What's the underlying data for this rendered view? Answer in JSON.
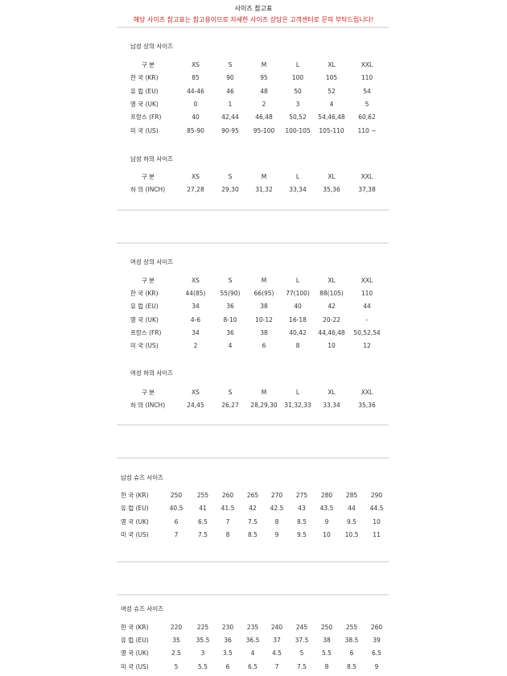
{
  "header": {
    "title": "사이즈 참고표",
    "notice": "해당 사이즈 참고표는 참고용이므로 자세한 사이즈 상담은 고객센터로 문의 부탁드립니다!"
  },
  "colors": {
    "notice": "#c8201e",
    "divider": "#e4e4e4",
    "text": "#333333"
  },
  "tables": [
    {
      "heading": "남성 상의 사이즈",
      "header": [
        "구 분",
        "XS",
        "S",
        "M",
        "L",
        "XL",
        "XXL"
      ],
      "rows": [
        [
          "한 국 (KR)",
          "85",
          "90",
          "95",
          "100",
          "105",
          "110"
        ],
        [
          "유 럽 (EU)",
          "44-46",
          "46",
          "48",
          "50",
          "52",
          "54"
        ],
        [
          "영 국 (UK)",
          "0",
          "1",
          "2",
          "3",
          "4",
          "5"
        ],
        [
          "프랑스 (FR)",
          "40",
          "42,44",
          "46,48",
          "50,52",
          "54,46,48",
          "60,62"
        ],
        [
          "미 국 (US)",
          "85-90",
          "90-95",
          "95-100",
          "100-105",
          "105-110",
          "110 ~"
        ]
      ]
    },
    {
      "heading": "남성 하의 사이즈",
      "header": [
        "구 분",
        "XS",
        "S",
        "M",
        "L",
        "XL",
        "XXL"
      ],
      "rows": [
        [
          "하 의 (INCH)",
          "27,28",
          "29,30",
          "31,32",
          "33,34",
          "35,36",
          "37,38"
        ]
      ]
    },
    {
      "heading": "여성 상의 사이즈",
      "header": [
        "구 분",
        "XS",
        "S",
        "M",
        "L",
        "XL",
        "XXL"
      ],
      "rows": [
        [
          "한 국 (KR)",
          "44(85)",
          "55(90)",
          "66(95)",
          "77(100)",
          "88(105)",
          "110"
        ],
        [
          "유 럽 (EU)",
          "34",
          "36",
          "38",
          "40",
          "42",
          "44"
        ],
        [
          "영 국 (UK)",
          "4-6",
          "8-10",
          "10-12",
          "16-18",
          "20-22",
          "-"
        ],
        [
          "프랑스 (FR)",
          "34",
          "36",
          "38",
          "40,42",
          "44,46,48",
          "50,52,54"
        ],
        [
          "미 국 (US)",
          "2",
          "4",
          "6",
          "8",
          "10",
          "12"
        ]
      ]
    },
    {
      "heading": "여성 하의 사이즈",
      "header": [
        "구 분",
        "XS",
        "S",
        "M",
        "L",
        "XL",
        "XXL"
      ],
      "rows": [
        [
          "하 의 (INCH)",
          "24,45",
          "26,27",
          "28,29,30",
          "31,32,33",
          "33,34",
          "35,36"
        ]
      ]
    },
    {
      "heading": "남성 슈즈 사이즈",
      "rows": [
        [
          "한 국 (KR)",
          "250",
          "255",
          "260",
          "265",
          "270",
          "275",
          "280",
          "285",
          "290"
        ],
        [
          "유 럽 (EU)",
          "40.5",
          "41",
          "41.5",
          "42",
          "42.5",
          "43",
          "43.5",
          "44",
          "44.5"
        ],
        [
          "영 국 (UK)",
          "6",
          "6.5",
          "7",
          "7.5",
          "8",
          "8.5",
          "9",
          "9.5",
          "10"
        ],
        [
          "미 국 (US)",
          "7",
          "7.5",
          "8",
          "8.5",
          "9",
          "9.5",
          "10",
          "10.5",
          "11"
        ]
      ]
    },
    {
      "heading": "여성 슈즈 사이즈",
      "rows": [
        [
          "한 국 (KR)",
          "220",
          "225",
          "230",
          "235",
          "240",
          "245",
          "250",
          "255",
          "260"
        ],
        [
          "유 럽 (EU)",
          "35",
          "35.5",
          "36",
          "36.5",
          "37",
          "37.5",
          "38",
          "38.5",
          "39"
        ],
        [
          "영 국 (UK)",
          "2.5",
          "3",
          "3.5",
          "4",
          "4.5",
          "5",
          "5.5",
          "6",
          "6.5"
        ],
        [
          "미 국 (US)",
          "5",
          "5.5",
          "6",
          "6.5",
          "7",
          "7.5",
          "8",
          "8.5",
          "9"
        ]
      ]
    }
  ]
}
